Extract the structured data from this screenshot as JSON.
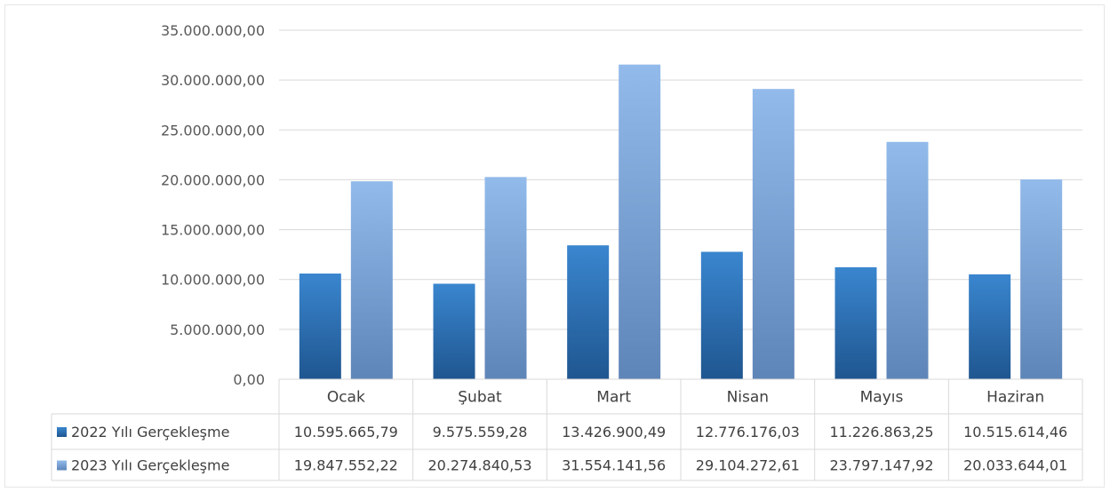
{
  "chart_data": {
    "type": "bar",
    "title": "",
    "xlabel": "",
    "ylabel": "",
    "ylim": [
      0,
      35000000
    ],
    "yticks": [
      0,
      5000000,
      10000000,
      15000000,
      20000000,
      25000000,
      30000000,
      35000000
    ],
    "ytick_labels": [
      "0,00",
      "5.000.000,00",
      "10.000.000,00",
      "15.000.000,00",
      "20.000.000,00",
      "25.000.000,00",
      "30.000.000,00",
      "35.000.000,00"
    ],
    "grid": true,
    "legend": "data-table",
    "categories": [
      "Ocak",
      "Şubat",
      "Mart",
      "Nisan",
      "Mayıs",
      "Haziran"
    ],
    "series": [
      {
        "name": "2022 Yılı Gerçekleşme",
        "color": "#2e75b6",
        "values": [
          10595665.79,
          9575559.28,
          13426900.49,
          12776176.03,
          11226863.25,
          10515614.46
        ],
        "value_labels": [
          "10.595.665,79",
          "9.575.559,28",
          "13.426.900,49",
          "12.776.176,03",
          "11.226.863,25",
          "10.515.614,46"
        ]
      },
      {
        "name": "2023 Yılı Gerçekleşme",
        "color": "#8db4e2",
        "values": [
          19847552.22,
          20274840.53,
          31554141.56,
          29104272.61,
          23797147.92,
          20033644.01
        ],
        "value_labels": [
          "19.847.552,22",
          "20.274.840,53",
          "31.554.141,56",
          "29.104.272,61",
          "23.797.147,92",
          "20.033.644,01"
        ]
      }
    ]
  }
}
